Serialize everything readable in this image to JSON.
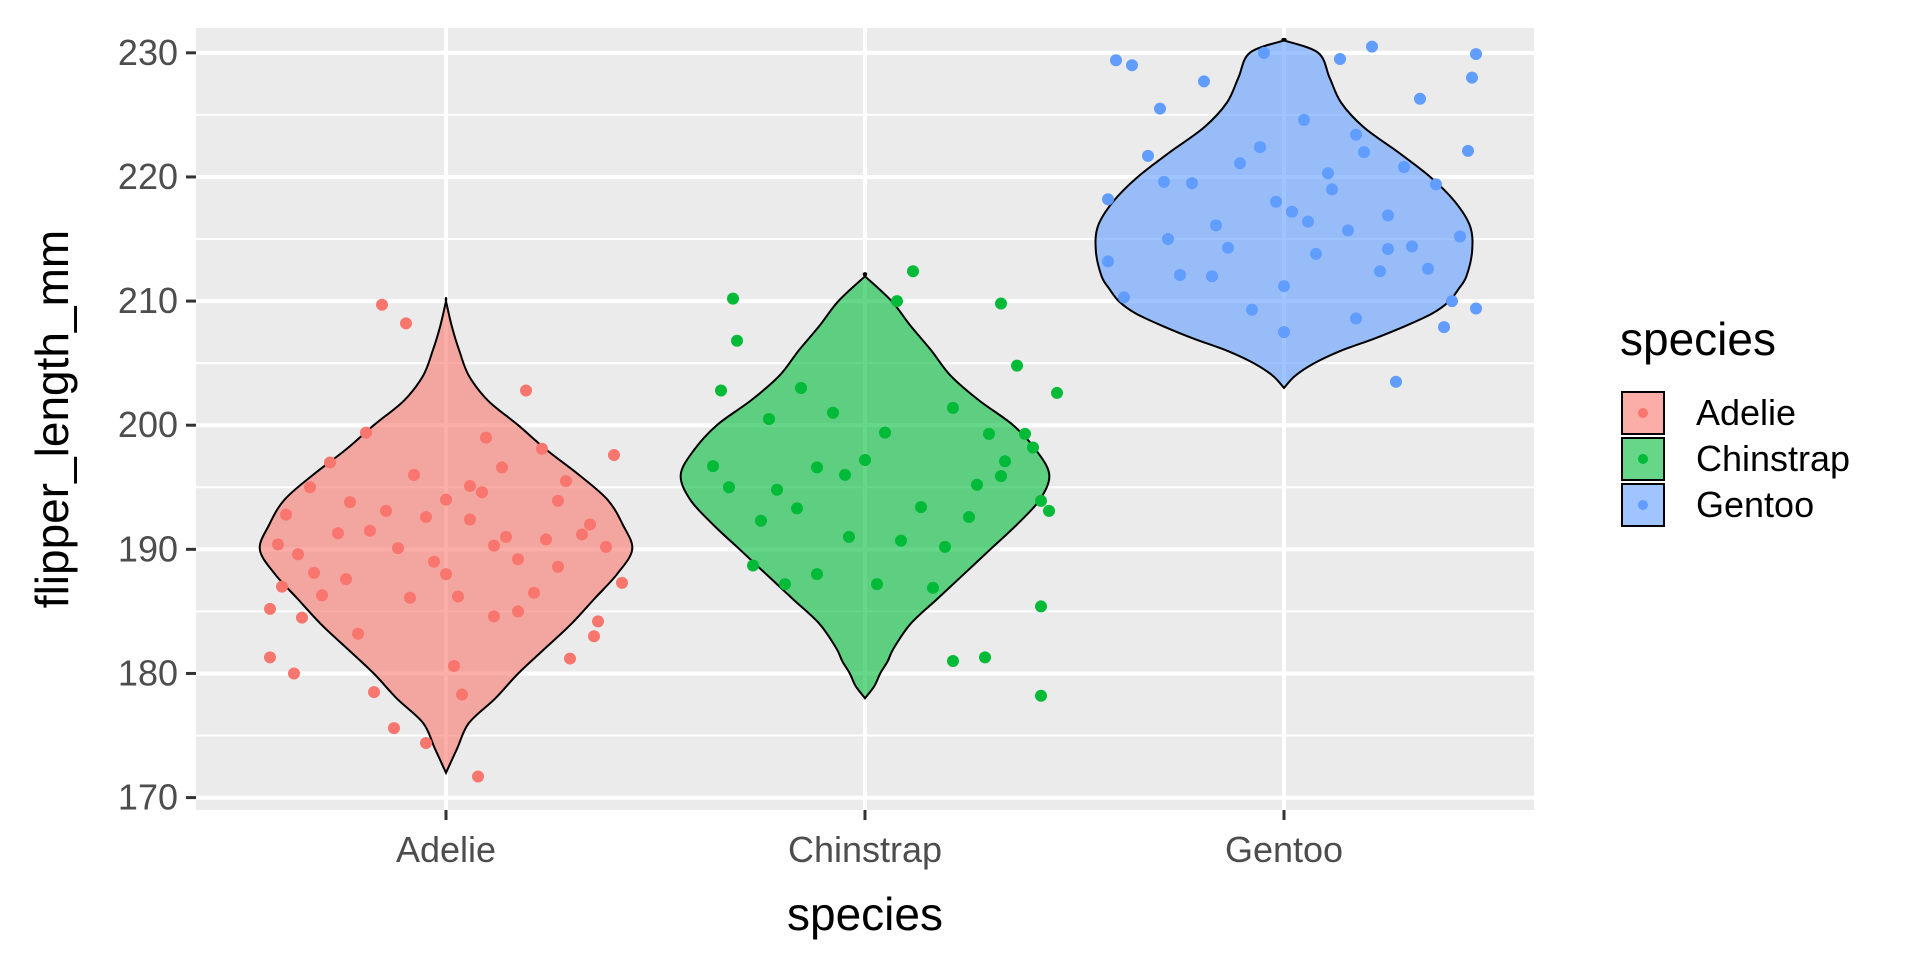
{
  "chart_data": {
    "type": "violin",
    "title": "",
    "xlabel": "species",
    "ylabel": "flipper_length_mm",
    "categories": [
      "Adelie",
      "Chinstrap",
      "Gentoo"
    ],
    "ylim": [
      169,
      232
    ],
    "yticks": [
      170,
      180,
      190,
      200,
      210,
      220,
      230
    ],
    "ytick_labels": [
      "170",
      "180",
      "190",
      "200",
      "210",
      "220",
      "230"
    ],
    "grid": true,
    "legend": {
      "title": "species",
      "position": "right",
      "entries": [
        "Adelie",
        "Chinstrap",
        "Gentoo"
      ]
    },
    "colors": {
      "Adelie": "#F8766D",
      "Chinstrap": "#00BA38",
      "Gentoo": "#619CFF",
      "panel": "#EBEBEB",
      "grid": "#FFFFFF",
      "outline": "#000000"
    },
    "series": [
      {
        "name": "Adelie",
        "min": 172,
        "max": 210,
        "violin_profile": [
          [
            172,
            0.0
          ],
          [
            174,
            0.06
          ],
          [
            176,
            0.12
          ],
          [
            178,
            0.26
          ],
          [
            180,
            0.38
          ],
          [
            182,
            0.52
          ],
          [
            184,
            0.66
          ],
          [
            186,
            0.78
          ],
          [
            188,
            0.9
          ],
          [
            190,
            0.98
          ],
          [
            192,
            0.93
          ],
          [
            194,
            0.85
          ],
          [
            196,
            0.7
          ],
          [
            198,
            0.53
          ],
          [
            200,
            0.38
          ],
          [
            202,
            0.22
          ],
          [
            204,
            0.12
          ],
          [
            206,
            0.07
          ],
          [
            208,
            0.03
          ],
          [
            210,
            0.0
          ]
        ],
        "points": [
          {
            "xj": -0.44,
            "y": 181.3
          },
          {
            "xj": -0.38,
            "y": 180.0
          },
          {
            "xj": -0.36,
            "y": 184.5
          },
          {
            "xj": -0.41,
            "y": 187.0
          },
          {
            "xj": -0.44,
            "y": 185.2
          },
          {
            "xj": -0.4,
            "y": 192.8
          },
          {
            "xj": -0.42,
            "y": 190.4
          },
          {
            "xj": -0.34,
            "y": 195.0
          },
          {
            "xj": -0.37,
            "y": 189.6
          },
          {
            "xj": -0.33,
            "y": 188.1
          },
          {
            "xj": -0.29,
            "y": 197.0
          },
          {
            "xj": -0.31,
            "y": 186.3
          },
          {
            "xj": -0.25,
            "y": 187.6
          },
          {
            "xj": -0.22,
            "y": 183.2
          },
          {
            "xj": -0.19,
            "y": 191.5
          },
          {
            "xj": -0.2,
            "y": 199.4
          },
          {
            "xj": -0.12,
            "y": 190.1
          },
          {
            "xj": -0.09,
            "y": 186.1
          },
          {
            "xj": -0.05,
            "y": 192.6
          },
          {
            "xj": 0.0,
            "y": 194.0
          },
          {
            "xj": 0.03,
            "y": 186.2
          },
          {
            "xj": 0.06,
            "y": 192.4
          },
          {
            "xj": 0.09,
            "y": 194.6
          },
          {
            "xj": 0.12,
            "y": 190.3
          },
          {
            "xj": 0.15,
            "y": 191.0
          },
          {
            "xj": 0.18,
            "y": 189.2
          },
          {
            "xj": 0.22,
            "y": 186.5
          },
          {
            "xj": 0.25,
            "y": 190.8
          },
          {
            "xj": 0.28,
            "y": 193.9
          },
          {
            "xj": 0.3,
            "y": 195.5
          },
          {
            "xj": 0.34,
            "y": 191.2
          },
          {
            "xj": 0.37,
            "y": 183.0
          },
          {
            "xj": 0.4,
            "y": 190.2
          },
          {
            "xj": 0.44,
            "y": 187.3
          },
          {
            "xj": 0.42,
            "y": 197.6
          },
          {
            "xj": 0.38,
            "y": 184.2
          },
          {
            "xj": 0.31,
            "y": 181.2
          },
          {
            "xj": 0.2,
            "y": 202.8
          },
          {
            "xj": 0.06,
            "y": 195.1
          },
          {
            "xj": -0.18,
            "y": 178.5
          },
          {
            "xj": -0.16,
            "y": 209.7
          },
          {
            "xj": -0.1,
            "y": 208.2
          },
          {
            "xj": -0.13,
            "y": 175.6
          },
          {
            "xj": 0.08,
            "y": 171.7
          },
          {
            "xj": 0.04,
            "y": 178.3
          },
          {
            "xj": -0.05,
            "y": 174.4
          },
          {
            "xj": 0.14,
            "y": 196.6
          },
          {
            "xj": 0.24,
            "y": 198.1
          },
          {
            "xj": -0.24,
            "y": 193.8
          },
          {
            "xj": 0.0,
            "y": 188.0
          },
          {
            "xj": -0.08,
            "y": 196.0
          },
          {
            "xj": 0.1,
            "y": 199.0
          },
          {
            "xj": -0.03,
            "y": 189.0
          },
          {
            "xj": 0.18,
            "y": 185.0
          },
          {
            "xj": -0.27,
            "y": 191.3
          },
          {
            "xj": 0.36,
            "y": 192.0
          },
          {
            "xj": 0.02,
            "y": 180.6
          },
          {
            "xj": 0.28,
            "y": 188.6
          },
          {
            "xj": -0.15,
            "y": 193.1
          },
          {
            "xj": 0.12,
            "y": 184.6
          }
        ]
      },
      {
        "name": "Chinstrap",
        "min": 178,
        "max": 212,
        "violin_profile": [
          [
            178,
            0.0
          ],
          [
            179,
            0.05
          ],
          [
            180,
            0.08
          ],
          [
            181,
            0.12
          ],
          [
            182,
            0.15
          ],
          [
            184,
            0.24
          ],
          [
            186,
            0.38
          ],
          [
            188,
            0.52
          ],
          [
            190,
            0.66
          ],
          [
            192,
            0.8
          ],
          [
            194,
            0.92
          ],
          [
            196,
            0.97
          ],
          [
            198,
            0.9
          ],
          [
            200,
            0.78
          ],
          [
            202,
            0.6
          ],
          [
            204,
            0.45
          ],
          [
            206,
            0.35
          ],
          [
            208,
            0.24
          ],
          [
            210,
            0.14
          ],
          [
            212,
            0.0
          ]
        ],
        "points": [
          {
            "xj": -0.38,
            "y": 196.7
          },
          {
            "xj": -0.34,
            "y": 195.0
          },
          {
            "xj": -0.36,
            "y": 202.8
          },
          {
            "xj": -0.32,
            "y": 206.8
          },
          {
            "xj": -0.33,
            "y": 210.2
          },
          {
            "xj": -0.28,
            "y": 188.7
          },
          {
            "xj": -0.26,
            "y": 192.3
          },
          {
            "xj": -0.24,
            "y": 200.5
          },
          {
            "xj": -0.2,
            "y": 187.2
          },
          {
            "xj": -0.17,
            "y": 193.3
          },
          {
            "xj": -0.16,
            "y": 203.0
          },
          {
            "xj": -0.12,
            "y": 196.6
          },
          {
            "xj": -0.12,
            "y": 188.0
          },
          {
            "xj": -0.08,
            "y": 201.0
          },
          {
            "xj": -0.04,
            "y": 191.0
          },
          {
            "xj": 0.0,
            "y": 197.2
          },
          {
            "xj": 0.03,
            "y": 187.2
          },
          {
            "xj": 0.05,
            "y": 199.4
          },
          {
            "xj": 0.08,
            "y": 210.0
          },
          {
            "xj": 0.09,
            "y": 190.7
          },
          {
            "xj": 0.14,
            "y": 193.4
          },
          {
            "xj": 0.17,
            "y": 186.9
          },
          {
            "xj": 0.2,
            "y": 190.2
          },
          {
            "xj": 0.22,
            "y": 201.4
          },
          {
            "xj": 0.22,
            "y": 181.0
          },
          {
            "xj": 0.26,
            "y": 192.6
          },
          {
            "xj": 0.28,
            "y": 195.2
          },
          {
            "xj": 0.31,
            "y": 199.3
          },
          {
            "xj": 0.34,
            "y": 195.9
          },
          {
            "xj": 0.38,
            "y": 204.8
          },
          {
            "xj": 0.35,
            "y": 197.1
          },
          {
            "xj": 0.4,
            "y": 199.3
          },
          {
            "xj": 0.42,
            "y": 198.2
          },
          {
            "xj": 0.44,
            "y": 193.9
          },
          {
            "xj": 0.46,
            "y": 193.1
          },
          {
            "xj": 0.48,
            "y": 202.6
          },
          {
            "xj": 0.3,
            "y": 181.3
          },
          {
            "xj": 0.44,
            "y": 185.4
          },
          {
            "xj": 0.44,
            "y": 178.2
          },
          {
            "xj": 0.34,
            "y": 209.8
          },
          {
            "xj": -0.05,
            "y": 196.0
          },
          {
            "xj": -0.22,
            "y": 194.8
          },
          {
            "xj": 0.12,
            "y": 212.4
          }
        ]
      },
      {
        "name": "Gentoo",
        "min": 203,
        "max": 231,
        "violin_profile": [
          [
            203,
            0.0
          ],
          [
            204,
            0.06
          ],
          [
            205,
            0.16
          ],
          [
            206,
            0.3
          ],
          [
            207,
            0.48
          ],
          [
            208,
            0.64
          ],
          [
            209,
            0.78
          ],
          [
            210,
            0.87
          ],
          [
            211,
            0.92
          ],
          [
            212,
            0.96
          ],
          [
            214,
            0.99
          ],
          [
            216,
            0.98
          ],
          [
            218,
            0.9
          ],
          [
            220,
            0.77
          ],
          [
            222,
            0.6
          ],
          [
            224,
            0.42
          ],
          [
            226,
            0.3
          ],
          [
            228,
            0.24
          ],
          [
            230,
            0.18
          ],
          [
            231,
            0.0
          ]
        ],
        "points": [
          {
            "xj": -0.42,
            "y": 229.4
          },
          {
            "xj": -0.38,
            "y": 229.0
          },
          {
            "xj": -0.4,
            "y": 210.3
          },
          {
            "xj": -0.34,
            "y": 221.7
          },
          {
            "xj": -0.31,
            "y": 225.5
          },
          {
            "xj": -0.29,
            "y": 215.0
          },
          {
            "xj": -0.26,
            "y": 212.1
          },
          {
            "xj": -0.23,
            "y": 219.5
          },
          {
            "xj": -0.2,
            "y": 227.7
          },
          {
            "xj": -0.17,
            "y": 216.1
          },
          {
            "xj": -0.14,
            "y": 214.3
          },
          {
            "xj": -0.11,
            "y": 221.1
          },
          {
            "xj": -0.08,
            "y": 209.3
          },
          {
            "xj": -0.05,
            "y": 230.0
          },
          {
            "xj": -0.02,
            "y": 218.0
          },
          {
            "xj": 0.0,
            "y": 211.2
          },
          {
            "xj": 0.02,
            "y": 217.2
          },
          {
            "xj": 0.05,
            "y": 224.6
          },
          {
            "xj": 0.08,
            "y": 213.8
          },
          {
            "xj": 0.11,
            "y": 220.3
          },
          {
            "xj": 0.14,
            "y": 229.5
          },
          {
            "xj": 0.16,
            "y": 215.7
          },
          {
            "xj": 0.18,
            "y": 208.6
          },
          {
            "xj": 0.2,
            "y": 222.0
          },
          {
            "xj": 0.22,
            "y": 230.5
          },
          {
            "xj": 0.24,
            "y": 212.4
          },
          {
            "xj": 0.26,
            "y": 216.9
          },
          {
            "xj": 0.28,
            "y": 203.5
          },
          {
            "xj": 0.3,
            "y": 220.8
          },
          {
            "xj": 0.32,
            "y": 214.4
          },
          {
            "xj": 0.34,
            "y": 226.3
          },
          {
            "xj": 0.36,
            "y": 212.6
          },
          {
            "xj": 0.38,
            "y": 219.4
          },
          {
            "xj": 0.4,
            "y": 207.9
          },
          {
            "xj": 0.42,
            "y": 210.0
          },
          {
            "xj": 0.44,
            "y": 215.2
          },
          {
            "xj": 0.46,
            "y": 222.1
          },
          {
            "xj": 0.48,
            "y": 229.9
          },
          {
            "xj": 0.48,
            "y": 209.4
          },
          {
            "xj": 0.47,
            "y": 228.0
          },
          {
            "xj": -0.44,
            "y": 218.2
          },
          {
            "xj": -0.44,
            "y": 213.2
          },
          {
            "xj": 0.06,
            "y": 216.4
          },
          {
            "xj": -0.06,
            "y": 222.4
          },
          {
            "xj": 0.12,
            "y": 219.0
          },
          {
            "xj": -0.18,
            "y": 212.0
          },
          {
            "xj": 0.18,
            "y": 223.4
          },
          {
            "xj": 0.0,
            "y": 207.5
          },
          {
            "xj": -0.3,
            "y": 219.6
          },
          {
            "xj": 0.26,
            "y": 214.2
          }
        ]
      }
    ]
  }
}
